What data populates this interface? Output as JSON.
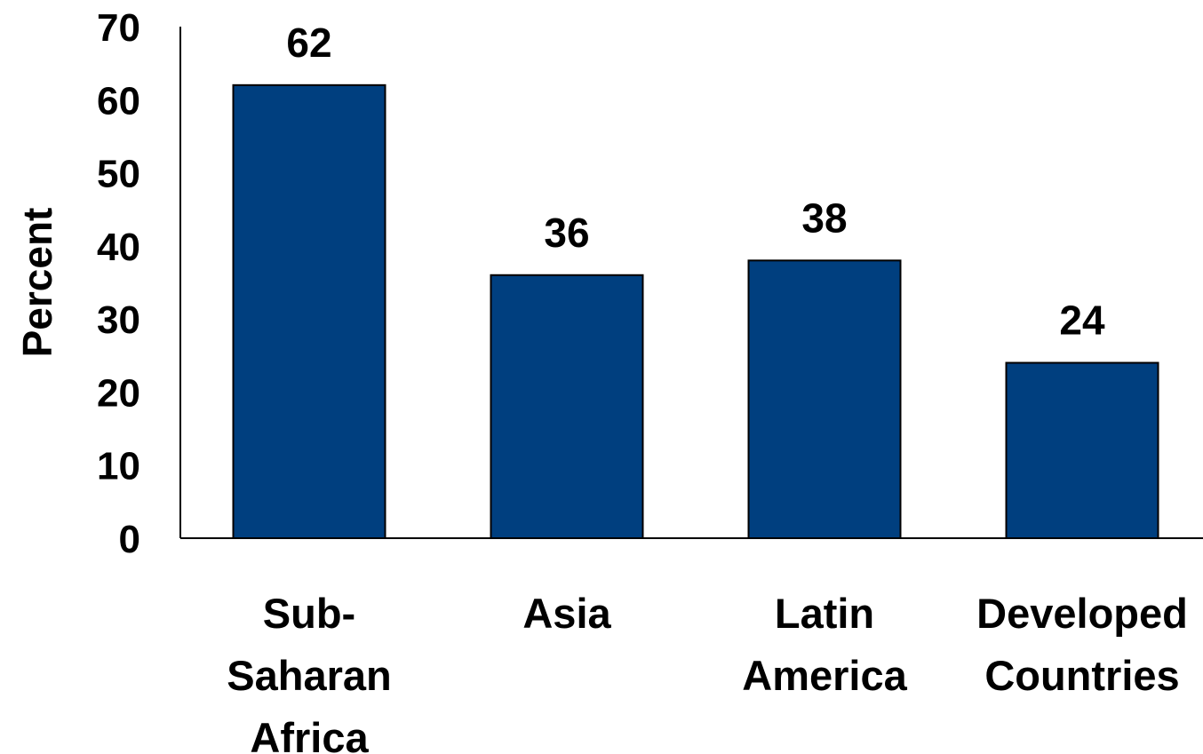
{
  "chart_data": {
    "type": "bar",
    "categories": [
      [
        "Sub-",
        "Saharan",
        "Africa"
      ],
      [
        "Asia"
      ],
      [
        "Latin",
        "America"
      ],
      [
        "Developed",
        "Countries"
      ]
    ],
    "values": [
      62,
      36,
      38,
      24
    ],
    "data_labels": [
      "62",
      "36",
      "38",
      "24"
    ],
    "ylabel": "Percent",
    "ylim": [
      0,
      70
    ],
    "yticks": [
      "0",
      "10",
      "20",
      "30",
      "40",
      "50",
      "60",
      "70"
    ],
    "grid": false,
    "legend": "none",
    "colors": {
      "bar": "#003f7f",
      "bar_outline": "#000000",
      "axis": "#000000"
    }
  }
}
